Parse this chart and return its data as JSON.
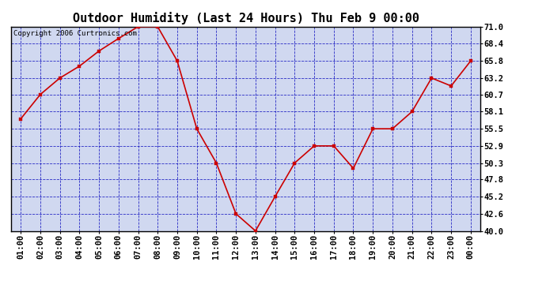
{
  "title": "Outdoor Humidity (Last 24 Hours) Thu Feb 9 00:00",
  "copyright": "Copyright 2006 Curtronics.com",
  "x_labels": [
    "01:00",
    "02:00",
    "03:00",
    "04:00",
    "05:00",
    "06:00",
    "07:00",
    "08:00",
    "09:00",
    "10:00",
    "11:00",
    "12:00",
    "13:00",
    "14:00",
    "15:00",
    "16:00",
    "17:00",
    "18:00",
    "19:00",
    "20:00",
    "21:00",
    "22:00",
    "23:00",
    "00:00"
  ],
  "y_values": [
    57.0,
    60.7,
    63.2,
    65.0,
    67.3,
    69.2,
    71.0,
    71.0,
    65.8,
    55.5,
    50.3,
    42.6,
    40.0,
    45.2,
    50.3,
    52.9,
    52.9,
    49.5,
    55.5,
    55.5,
    58.1,
    63.2,
    62.0,
    65.8
  ],
  "line_color": "#cc0000",
  "marker_color": "#cc0000",
  "bg_color": "#ffffff",
  "plot_bg_color": "#d0d8f0",
  "grid_color": "#0000bb",
  "axis_color": "#000000",
  "y_ticks": [
    40.0,
    42.6,
    45.2,
    47.8,
    50.3,
    52.9,
    55.5,
    58.1,
    60.7,
    63.2,
    65.8,
    68.4,
    71.0
  ],
  "y_min": 40.0,
  "y_max": 71.0,
  "title_fontsize": 11,
  "tick_fontsize": 7.5,
  "copyright_fontsize": 6.5
}
